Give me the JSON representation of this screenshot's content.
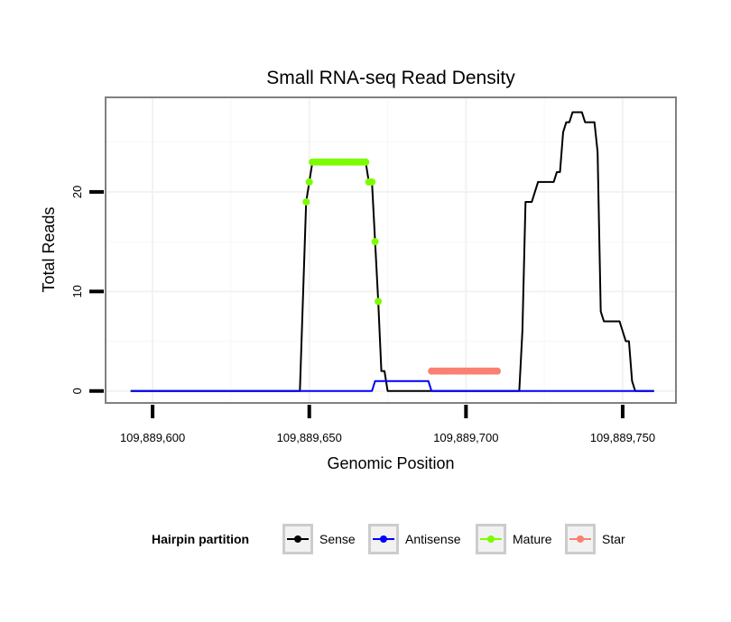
{
  "chart_data": {
    "type": "line",
    "title": "Small RNA-seq Read Density",
    "xlabel": "Genomic Position",
    "ylabel": "Total Reads",
    "xlim": [
      109889585,
      109889767
    ],
    "ylim": [
      -1.2,
      29.5
    ],
    "x_ticks": [
      {
        "value": 109889600,
        "label": "109,889,600"
      },
      {
        "value": 109889650,
        "label": "109,889,650"
      },
      {
        "value": 109889700,
        "label": "109,889,700"
      },
      {
        "value": 109889750,
        "label": "109,889,750"
      }
    ],
    "y_ticks": [
      {
        "value": 0,
        "label": "0"
      },
      {
        "value": 10,
        "label": "10"
      },
      {
        "value": 20,
        "label": "20"
      }
    ],
    "grid": true,
    "legend": {
      "title": "Hairpin partition",
      "position": "bottom",
      "items": [
        {
          "label": "Sense",
          "color": "#000000"
        },
        {
          "label": "Antisense",
          "color": "#0000ff"
        },
        {
          "label": "Mature",
          "color": "#7cfc00"
        },
        {
          "label": "Star",
          "color": "#fa8072"
        }
      ]
    },
    "series": [
      {
        "name": "Sense",
        "color": "#000000",
        "kind": "line",
        "x": [
          109889593,
          109889647,
          109889649,
          109889650,
          109889651,
          109889652,
          109889653,
          109889668,
          109889669,
          109889670,
          109889671,
          109889672,
          109889673,
          109889674,
          109889675,
          109889688,
          109889689,
          109889711,
          109889712,
          109889716,
          109889717,
          109889718,
          109889719,
          109889720,
          109889721,
          109889723,
          109889724,
          109889728,
          109889729,
          109889730,
          109889731,
          109889732,
          109889733,
          109889734,
          109889735,
          109889736,
          109889737,
          109889738,
          109889739,
          109889740,
          109889741,
          109889742,
          109889743,
          109889744,
          109889745,
          109889746,
          109889747,
          109889748,
          109889749,
          109889750,
          109889751,
          109889752,
          109889753,
          109889754,
          109889755,
          109889756,
          109889760
        ],
        "y": [
          0,
          0,
          19,
          21,
          23,
          23,
          23,
          23,
          21,
          21,
          15,
          9,
          2,
          2,
          0,
          0,
          0,
          0,
          0,
          0,
          0,
          6,
          19,
          19,
          19,
          21,
          21,
          21,
          22,
          22,
          26,
          27,
          27,
          28,
          28,
          28,
          28,
          27,
          27,
          27,
          27,
          24,
          8,
          7,
          7,
          7,
          7,
          7,
          7,
          6,
          5,
          5,
          1,
          0,
          0,
          0,
          0
        ]
      },
      {
        "name": "Antisense",
        "color": "#0000ff",
        "kind": "line",
        "x": [
          109889593,
          109889670,
          109889671,
          109889688,
          109889689,
          109889760
        ],
        "y": [
          0,
          0,
          1,
          1,
          0,
          0
        ]
      },
      {
        "name": "Mature",
        "color": "#7cfc00",
        "kind": "points",
        "x": [
          109889649,
          109889650,
          109889651,
          109889652,
          109889653,
          109889654,
          109889655,
          109889656,
          109889657,
          109889658,
          109889659,
          109889660,
          109889661,
          109889662,
          109889663,
          109889664,
          109889665,
          109889666,
          109889667,
          109889668,
          109889669,
          109889670,
          109889671,
          109889672
        ],
        "y": [
          19,
          21,
          23,
          23,
          23,
          23,
          23,
          23,
          23,
          23,
          23,
          23,
          23,
          23,
          23,
          23,
          23,
          23,
          23,
          23,
          21,
          21,
          15,
          9
        ]
      },
      {
        "name": "Star",
        "color": "#fa8072",
        "kind": "points",
        "x": [
          109889689,
          109889690,
          109889691,
          109889692,
          109889693,
          109889694,
          109889695,
          109889696,
          109889697,
          109889698,
          109889699,
          109889700,
          109889701,
          109889702,
          109889703,
          109889704,
          109889705,
          109889706,
          109889707,
          109889708,
          109889709,
          109889710
        ],
        "y": [
          2,
          2,
          2,
          2,
          2,
          2,
          2,
          2,
          2,
          2,
          2,
          2,
          2,
          2,
          2,
          2,
          2,
          2,
          2,
          2,
          2,
          2
        ]
      }
    ]
  }
}
